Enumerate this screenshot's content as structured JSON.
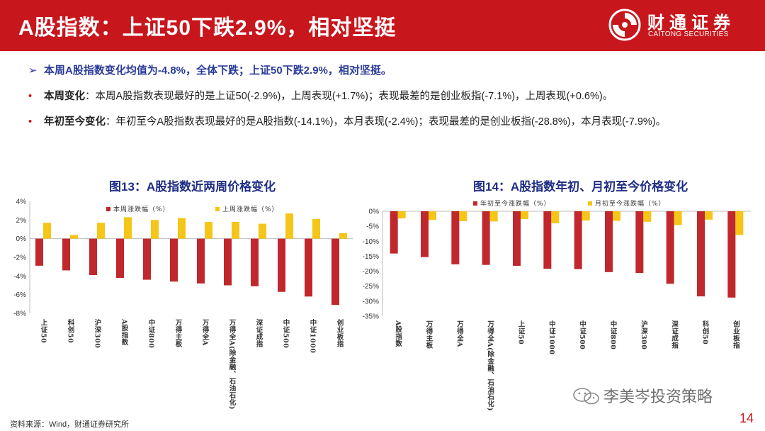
{
  "header": {
    "title": "A股指数：上证50下跌2.9%，相对坚挺",
    "logo_cn": "财通证券",
    "logo_en": "CAITONG SECURITIES"
  },
  "summary": {
    "arrow": "➢",
    "main": "本周A股指数变化均值为-4.8%，全体下跌；上证50下跌2.9%，相对坚挺。",
    "bullets": [
      {
        "label": "本周变化",
        "text": "：本周A股指数表现最好的是上证50(-2.9%)，上周表现(+1.7%)；表现最差的是创业板指(-7.1%)，上周表现(+0.6%)。"
      },
      {
        "label": "年初至今变化",
        "text": "：年初至今A股指数表现最好的是A股指数(-14.1%)，本月表现(-2.4%)；表现最差的是创业板指(-28.8%)，本月表现(-7.9%)。"
      }
    ]
  },
  "colors": {
    "red": "#c0282d",
    "yellow": "#f5c518",
    "brand": "#c8161d",
    "title": "#1f2d86"
  },
  "chart_data": [
    {
      "type": "bar",
      "title": "图13：A股指数近两周价格变化",
      "categories": [
        "上证50",
        "科创50",
        "沪深300",
        "A股指数",
        "中证800",
        "万得主板",
        "万得全A",
        "万得全A(除金融、石油石化)",
        "深证成指",
        "中证500",
        "中证1000",
        "创业板指"
      ],
      "series": [
        {
          "name": "本周涨跌幅（%）",
          "values": [
            -2.9,
            -3.4,
            -3.9,
            -4.2,
            -4.4,
            -4.6,
            -4.8,
            -5.0,
            -5.1,
            -5.7,
            -6.2,
            -7.1
          ]
        },
        {
          "name": "上周涨跌幅（%）",
          "values": [
            1.7,
            0.4,
            1.7,
            2.3,
            2.0,
            2.2,
            1.8,
            1.8,
            1.6,
            2.7,
            2.1,
            0.6
          ]
        }
      ],
      "ylim": [
        -8,
        4
      ],
      "yticks": [
        "4%",
        "2%",
        "0%",
        "-2%",
        "-4%",
        "-6%",
        "-8%"
      ],
      "ytick_values": [
        4,
        2,
        0,
        -2,
        -4,
        -6,
        -8
      ],
      "grid": false,
      "legend": "top"
    },
    {
      "type": "bar",
      "title": "图14：A股指数年初、月初至今价格变化",
      "categories": [
        "A股指数",
        "万得主板",
        "万得全A",
        "万得全A(除金融、石油石化)",
        "上证50",
        "中证1000",
        "中证500",
        "中证800",
        "沪深300",
        "深证成指",
        "科创50",
        "创业板指"
      ],
      "series": [
        {
          "name": "年初至今涨跌幅（%）",
          "values": [
            -14.1,
            -15.3,
            -17.7,
            -17.9,
            -18.2,
            -19.2,
            -19.3,
            -20.3,
            -20.6,
            -24.2,
            -28.4,
            -28.8
          ]
        },
        {
          "name": "月初至今涨跌幅（%）",
          "values": [
            -2.4,
            -2.9,
            -3.3,
            -3.4,
            -2.6,
            -4.0,
            -3.1,
            -3.2,
            -3.5,
            -4.6,
            -2.8,
            -7.9
          ]
        }
      ],
      "ylim": [
        -35,
        0
      ],
      "yticks": [
        "0%",
        "-5%",
        "-10%",
        "-15%",
        "-20%",
        "-25%",
        "-30%",
        "-35%"
      ],
      "ytick_values": [
        0,
        -5,
        -10,
        -15,
        -20,
        -25,
        -30,
        -35
      ],
      "grid": false,
      "legend": "top"
    }
  ],
  "source": "资料来源：Wind，财通证券研究所",
  "watermark": "李美岑投资策略",
  "page_number": "14"
}
